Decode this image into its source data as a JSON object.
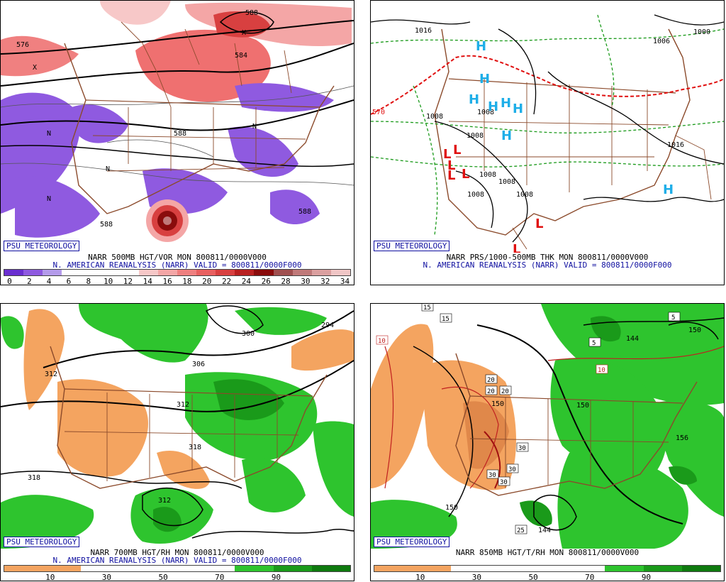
{
  "panels": [
    {
      "id": "p500",
      "badge": "PSU METEOROLOGY",
      "title": "NARR 500MB HGT/VOR MON 800811/0000V000",
      "subtitle": "N. AMERICAN REANALYSIS (NARR) VALID = 800811/0000F000",
      "contour_labels": [
        "576",
        "588",
        "584",
        "588",
        "588",
        "588"
      ],
      "symbols": [
        "X",
        "X",
        "N",
        "N",
        "N",
        "N"
      ],
      "colorbar": {
        "ticks": [
          "0",
          "2",
          "4",
          "6",
          "8",
          "10",
          "12",
          "14",
          "16",
          "18",
          "20",
          "22",
          "24",
          "26",
          "28",
          "30",
          "32",
          "34"
        ],
        "colors": [
          "#6a2fd0",
          "#8f5ae0",
          "#b49bea",
          "#ffffff",
          "#ffffff",
          "#ffffff",
          "#ffffff",
          "#f7c8c8",
          "#f4a6a6",
          "#ef8080",
          "#e86060",
          "#d84040",
          "#b82020",
          "#8a0c0c",
          "#a05050",
          "#c07a7a",
          "#dba0a0",
          "#f0c6c6"
        ]
      }
    },
    {
      "id": "pprs",
      "badge": "PSU METEOROLOGY",
      "title": "NARR PRS/1000-500MB THK MON 800811/0000V000",
      "subtitle": "N. AMERICAN REANALYSIS (NARR) VALID = 800811/0000F000",
      "isobar_labels": [
        "1016",
        "1008",
        "1008",
        "1008",
        "1008",
        "1008",
        "1008",
        "1008",
        "1016",
        "1000",
        "1006"
      ],
      "thickness_label": "570",
      "highs": [
        "H",
        "H",
        "H",
        "H",
        "H",
        "H",
        "H",
        "H"
      ],
      "lows": [
        "L",
        "L",
        "L",
        "L",
        "L",
        "L",
        "L"
      ],
      "colors": {
        "high": "#1eaee8",
        "low": "#e01010",
        "thick": "#e01010",
        "green": "#1a9a1a"
      }
    },
    {
      "id": "p700",
      "badge": "PSU METEOROLOGY",
      "title": "NARR 700MB HGT/RH MON 800811/0000V000",
      "subtitle": "N. AMERICAN REANALYSIS (NARR) VALID = 800811/0000F000",
      "contour_labels": [
        "312",
        "300",
        "294",
        "306",
        "312",
        "318",
        "318",
        "312"
      ],
      "colorbar": {
        "ticks": [
          "10",
          "30",
          "50",
          "70",
          "90"
        ],
        "colors": [
          "#f4a460",
          "#f4a460",
          "#ffffff",
          "#ffffff",
          "#ffffff",
          "#ffffff",
          "#2ec42e",
          "#1a9a1a",
          "#0f7a0f"
        ]
      }
    },
    {
      "id": "p850",
      "badge": "PSU METEOROLOGY",
      "title": "NARR 850MB HGT/T/RH MON 800811/0000V000",
      "contour_labels": [
        "150",
        "150",
        "144",
        "156",
        "144",
        "150",
        "150"
      ],
      "temp_labels": [
        "15",
        "15",
        "10",
        "10",
        "20",
        "20",
        "20",
        "30",
        "30",
        "30",
        "30",
        "25",
        "5",
        "5"
      ],
      "colorbar": {
        "ticks": [
          "10",
          "30",
          "50",
          "70",
          "90"
        ],
        "colors": [
          "#f4a460",
          "#f4a460",
          "#ffffff",
          "#ffffff",
          "#ffffff",
          "#ffffff",
          "#2ec42e",
          "#1a9a1a",
          "#0f7a0f"
        ]
      }
    }
  ]
}
